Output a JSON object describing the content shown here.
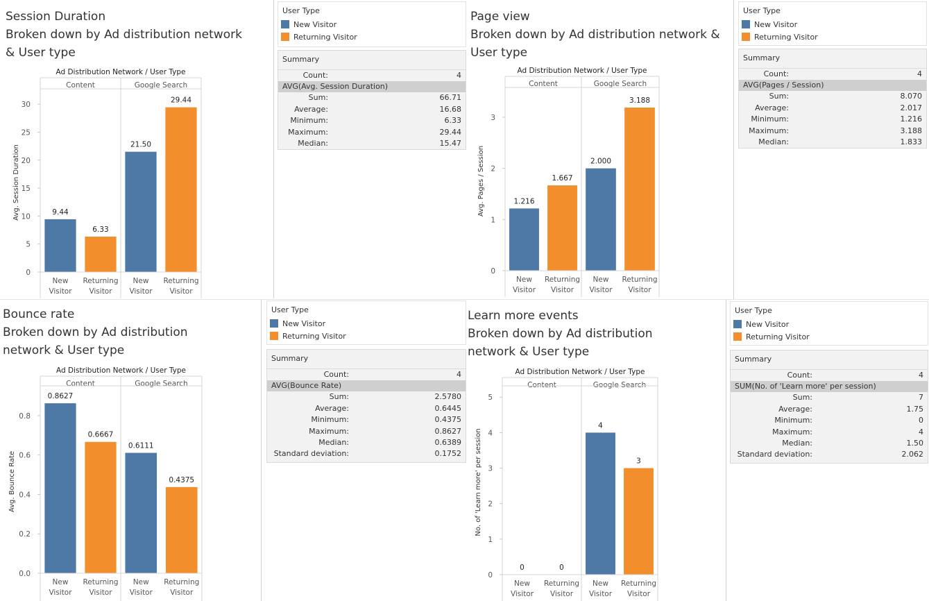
{
  "colors": {
    "new": "#4e79a7",
    "returning": "#f28e2b"
  },
  "legend": {
    "title": "User Type",
    "items": [
      "New Visitor",
      "Returning Visitor"
    ]
  },
  "summary_title": "Summary",
  "chart_data": [
    {
      "type": "bar",
      "title": "Session Duration\nBroken down by Ad distribution network\n& User type",
      "header": "Ad Distribution Network / User Type",
      "groups": [
        "Content",
        "Google Search"
      ],
      "categories": [
        "New\nVisitor",
        "Returning\nVisitor",
        "New\nVisitor",
        "Returning\nVisitor"
      ],
      "ylabel": "Avg. Session Duration",
      "ylim": [
        0,
        32
      ],
      "yticks": [
        "0",
        "5",
        "10",
        "15",
        "20",
        "25",
        "30"
      ],
      "ytick_values": [
        0,
        5,
        10,
        15,
        20,
        25,
        30
      ],
      "values": [
        9.44,
        6.33,
        21.5,
        29.44
      ],
      "value_labels": [
        "9.44",
        "6.33",
        "21.50",
        "29.44"
      ],
      "summary": {
        "count_label": "Count:",
        "count": "4",
        "measure": "AVG(Avg. Session Duration)",
        "rows": [
          [
            "Sum:",
            "66.71"
          ],
          [
            "Average:",
            "16.68"
          ],
          [
            "Minimum:",
            "6.33"
          ],
          [
            "Maximum:",
            "29.44"
          ],
          [
            "Median:",
            "15.47"
          ]
        ]
      }
    },
    {
      "type": "bar",
      "title": "Page view\nBroken down by Ad distribution network &\nUser type",
      "header": "Ad Distribution Network / User Type",
      "groups": [
        "Content",
        "Google Search"
      ],
      "categories": [
        "New\nVisitor",
        "Returning\nVisitor",
        "New\nVisitor",
        "Returning\nVisitor"
      ],
      "ylabel": "Avg. Pages / Session",
      "ylim": [
        0,
        3.5
      ],
      "yticks": [
        "0",
        "1",
        "2",
        "3"
      ],
      "ytick_values": [
        0,
        1,
        2,
        3
      ],
      "values": [
        1.216,
        1.667,
        2.0,
        3.188
      ],
      "value_labels": [
        "1.216",
        "1.667",
        "2.000",
        "3.188"
      ],
      "summary": {
        "count_label": "Count:",
        "count": "4",
        "measure": "AVG(Pages / Session)",
        "rows": [
          [
            "Sum:",
            "8.070"
          ],
          [
            "Average:",
            "2.017"
          ],
          [
            "Minimum:",
            "1.216"
          ],
          [
            "Maximum:",
            "3.188"
          ],
          [
            "Median:",
            "1.833"
          ]
        ]
      }
    },
    {
      "type": "bar",
      "title": "Bounce rate\nBroken down by Ad distribution\nnetwork & User type",
      "header": "Ad Distribution Network / User Type",
      "groups": [
        "Content",
        "Google Search"
      ],
      "categories": [
        "New\nVisitor",
        "Returning\nVisitor",
        "New\nVisitor",
        "Returning\nVisitor"
      ],
      "ylabel": "Avg. Bounce Rate",
      "ylim": [
        0,
        0.93
      ],
      "yticks": [
        "0.0",
        "0.2",
        "0.4",
        "0.6",
        "0.8"
      ],
      "ytick_values": [
        0,
        0.2,
        0.4,
        0.6,
        0.8
      ],
      "values": [
        0.8627,
        0.6667,
        0.6111,
        0.4375
      ],
      "value_labels": [
        "0.8627",
        "0.6667",
        "0.6111",
        "0.4375"
      ],
      "summary": {
        "count_label": "Count:",
        "count": "4",
        "measure": "AVG(Bounce Rate)",
        "rows": [
          [
            "Sum:",
            "2.5780"
          ],
          [
            "Average:",
            "0.6445"
          ],
          [
            "Minimum:",
            "0.4375"
          ],
          [
            "Maximum:",
            "0.8627"
          ],
          [
            "Median:",
            "0.6389"
          ],
          [
            "Standard deviation:",
            "0.1752"
          ]
        ]
      }
    },
    {
      "type": "bar",
      "title": "Learn more events\nBroken down by Ad distribution\nnetwork & User type",
      "header": "Ad Distribution Network / User Type",
      "groups": [
        "Content",
        "Google Search"
      ],
      "categories": [
        "New\nVisitor",
        "Returning\nVisitor",
        "New\nVisitor",
        "Returning\nVisitor"
      ],
      "ylabel": "No. of 'Learn more' per session",
      "ylim": [
        0,
        5.2
      ],
      "yticks": [
        "0",
        "1",
        "2",
        "3",
        "4",
        "5"
      ],
      "ytick_values": [
        0,
        1,
        2,
        3,
        4,
        5
      ],
      "values": [
        0,
        0,
        4,
        3
      ],
      "value_labels": [
        "0",
        "0",
        "4",
        "3"
      ],
      "summary": {
        "count_label": "Count:",
        "count": "4",
        "measure": "SUM(No. of 'Learn more' per session)",
        "rows": [
          [
            "Sum:",
            "7"
          ],
          [
            "Average:",
            "1.75"
          ],
          [
            "Minimum:",
            "0"
          ],
          [
            "Maximum:",
            "4"
          ],
          [
            "Median:",
            "1.50"
          ],
          [
            "Standard deviation:",
            "2.062"
          ]
        ]
      }
    }
  ]
}
